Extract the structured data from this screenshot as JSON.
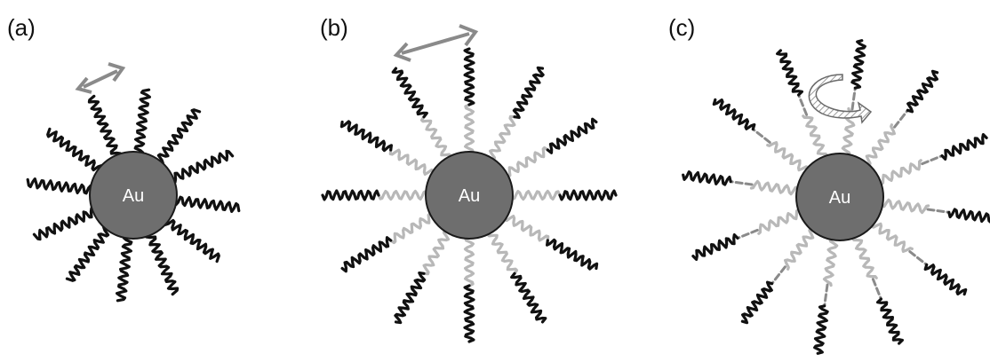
{
  "panels": [
    {
      "label": "(a)",
      "core_text": "Au",
      "motion": "short-translation-arrow"
    },
    {
      "label": "(b)",
      "core_text": "Au",
      "motion": "long-translation-arrow"
    },
    {
      "label": "(c)",
      "core_text": "Au",
      "motion": "rotation-arrow"
    }
  ],
  "colors": {
    "core_fill": "#6e6e6e",
    "core_stroke": "#1a1a1a",
    "outer_chain": "#111111",
    "inner_chain": "#b8b8b8",
    "linker_dash": "#8a8a8a",
    "arrow": "#8a8a8a",
    "rotation_hatch": "#9a9a9a"
  }
}
